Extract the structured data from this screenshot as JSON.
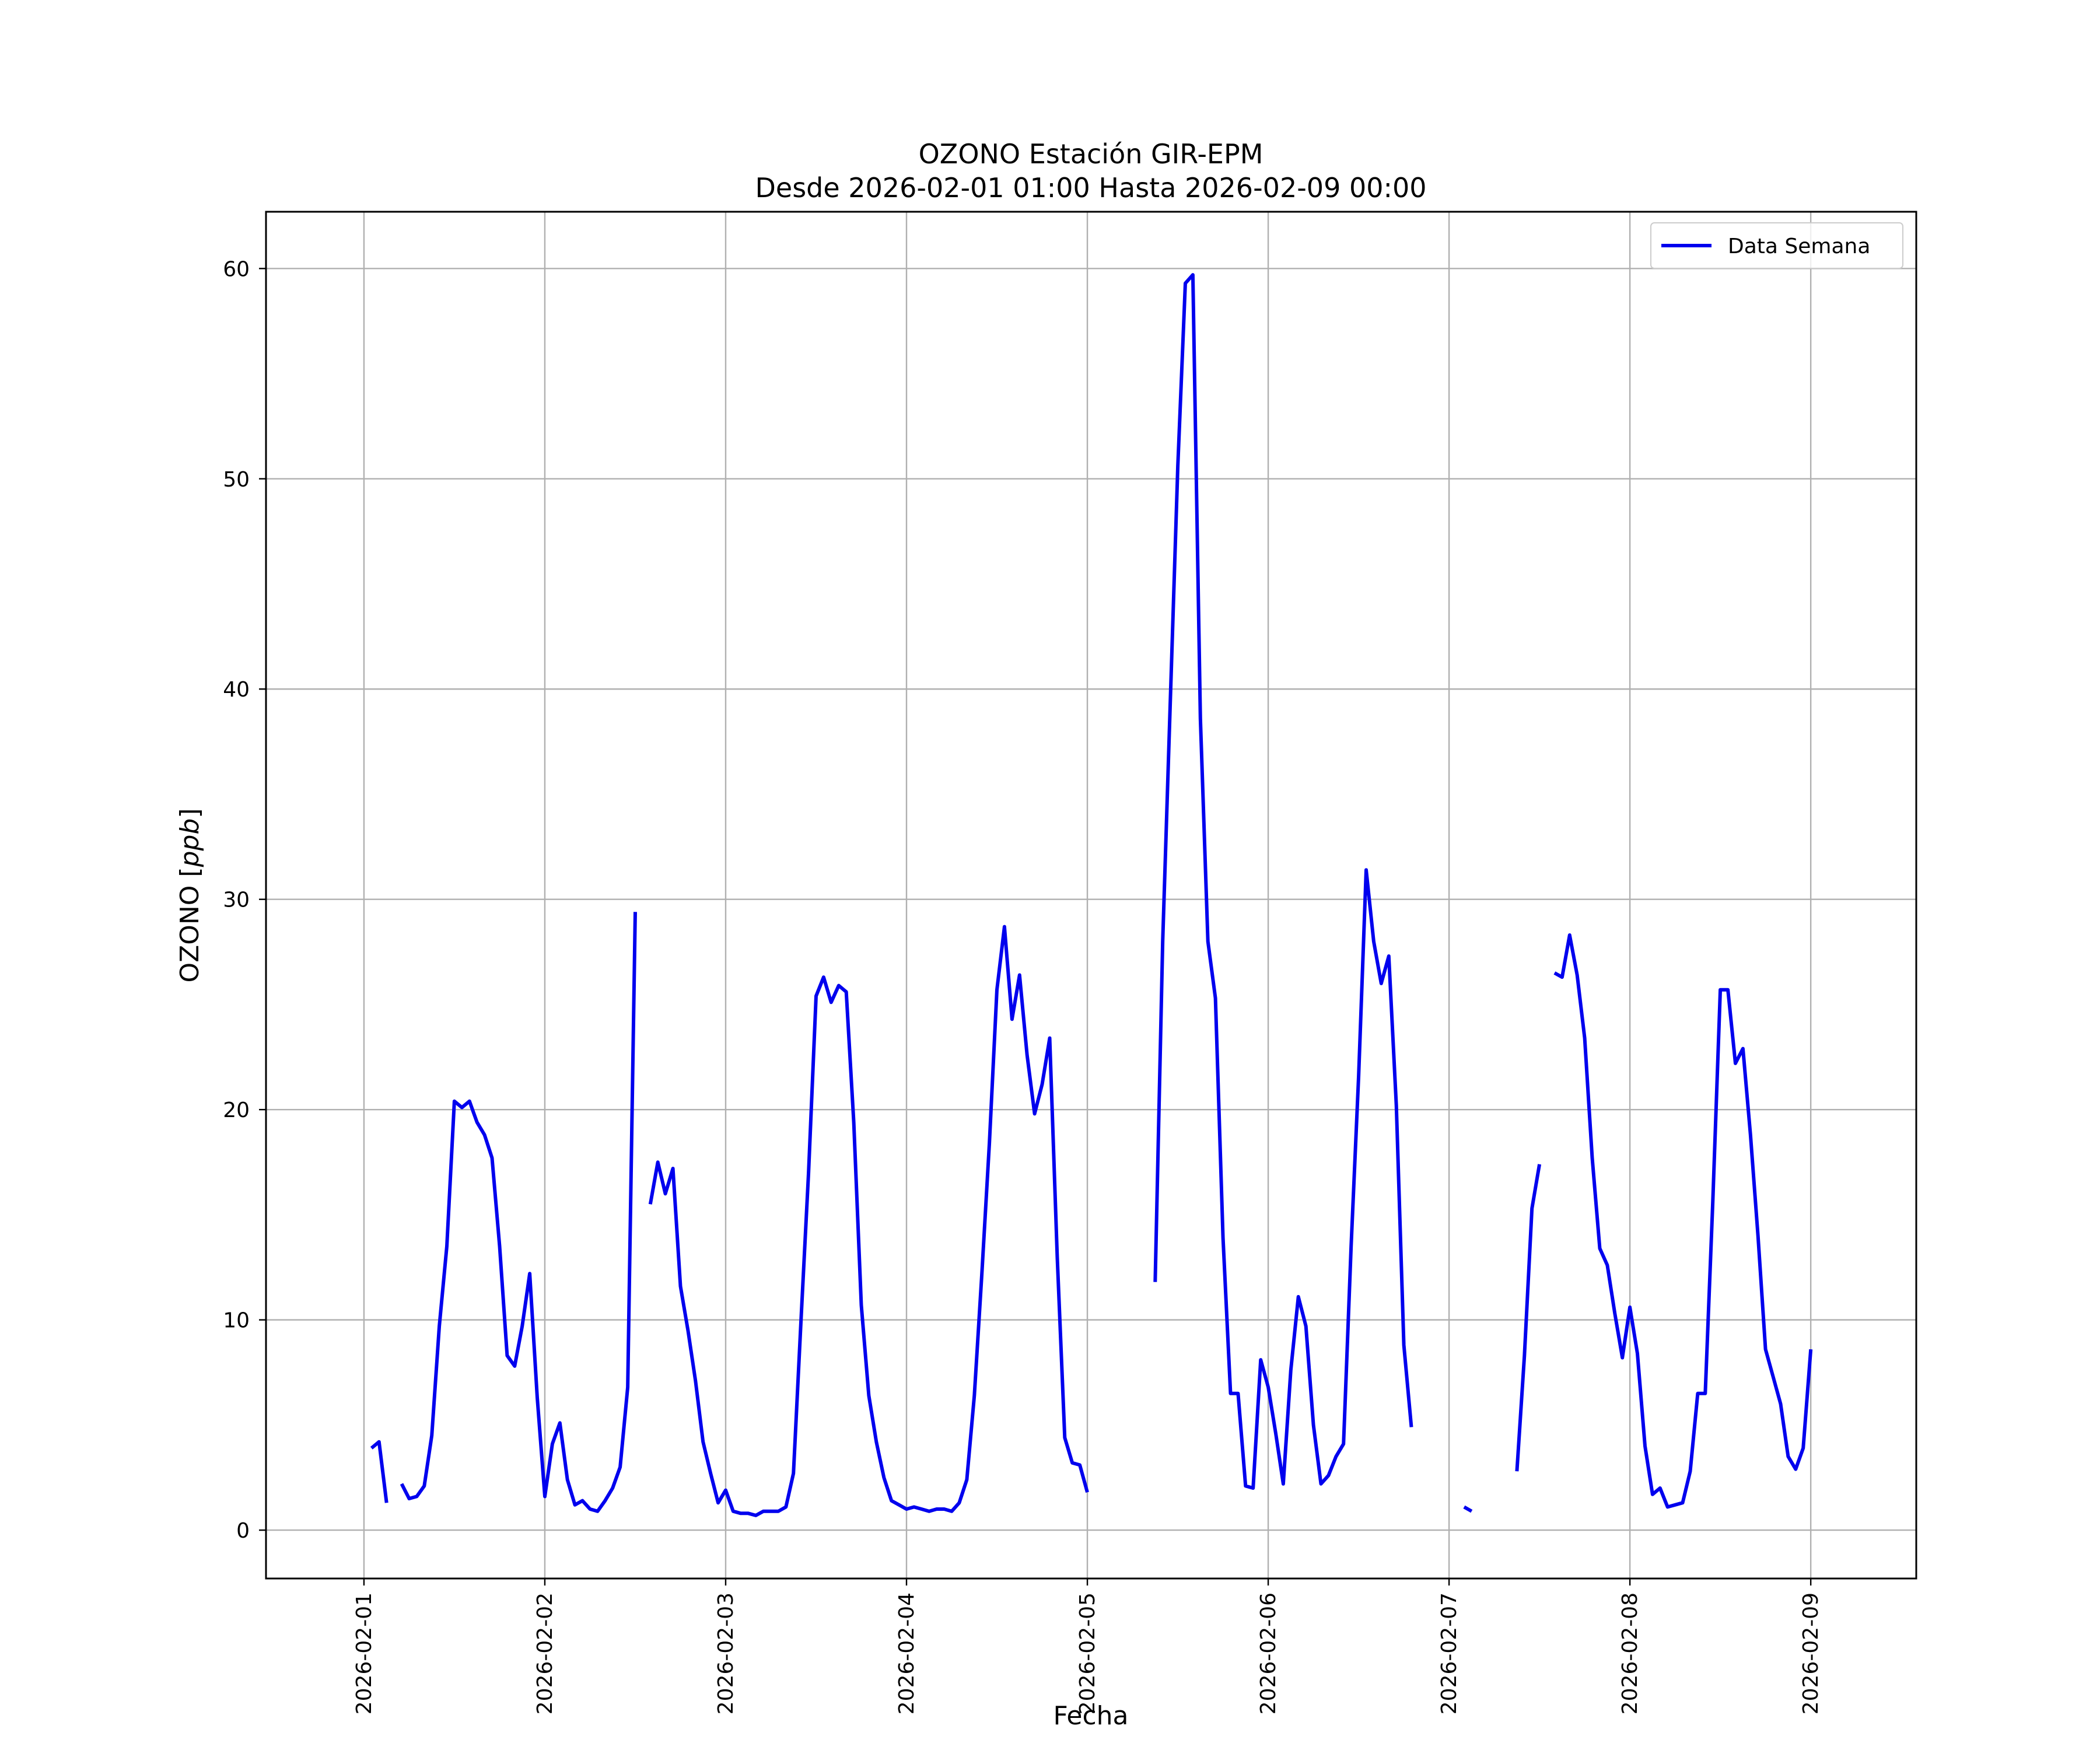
{
  "chart_data": {
    "type": "line",
    "title": "OZONO Estación GIR-EPM",
    "subtitle": "Desde 2026-02-01 01:00 Hasta 2026-02-09 00:00",
    "xlabel": "Fecha",
    "ylabel_main": "OZONO",
    "ylabel_unit": "ppb",
    "x_type": "datetime",
    "xlim": [
      "2026-01-31 11:00",
      "2026-02-09 14:00"
    ],
    "ylim": [
      -2.3,
      62.7
    ],
    "x_ticks": [
      "2026-02-01",
      "2026-02-02",
      "2026-02-03",
      "2026-02-04",
      "2026-02-05",
      "2026-02-06",
      "2026-02-07",
      "2026-02-08",
      "2026-02-09"
    ],
    "y_ticks": [
      0,
      10,
      20,
      30,
      40,
      50,
      60
    ],
    "grid": true,
    "legend_position": "top-right",
    "line_color": "#0000ee",
    "series": [
      {
        "name": "Data Semana",
        "segments": [
          [
            [
              "2026-02-01 01:00",
              3.9
            ],
            [
              "2026-02-01 02:00",
              4.2
            ],
            [
              "2026-02-01 03:00",
              1.3
            ]
          ],
          [
            [
              "2026-02-01 05:00",
              2.2
            ],
            [
              "2026-02-01 06:00",
              1.5
            ],
            [
              "2026-02-01 07:00",
              1.6
            ],
            [
              "2026-02-01 08:00",
              2.1
            ],
            [
              "2026-02-01 09:00",
              4.5
            ],
            [
              "2026-02-01 10:00",
              9.7
            ],
            [
              "2026-02-01 11:00",
              13.5
            ],
            [
              "2026-02-01 12:00",
              20.4
            ],
            [
              "2026-02-01 13:00",
              20.1
            ],
            [
              "2026-02-01 14:00",
              20.4
            ],
            [
              "2026-02-01 15:00",
              19.4
            ],
            [
              "2026-02-01 16:00",
              18.8
            ],
            [
              "2026-02-01 17:00",
              17.7
            ],
            [
              "2026-02-01 18:00",
              13.5
            ],
            [
              "2026-02-01 19:00",
              8.3
            ],
            [
              "2026-02-01 20:00",
              7.8
            ],
            [
              "2026-02-01 21:00",
              9.7
            ],
            [
              "2026-02-01 22:00",
              12.2
            ],
            [
              "2026-02-01 23:00",
              6.3
            ],
            [
              "2026-02-02 00:00",
              1.6
            ],
            [
              "2026-02-02 01:00",
              4.1
            ],
            [
              "2026-02-02 02:00",
              5.1
            ],
            [
              "2026-02-02 03:00",
              2.4
            ],
            [
              "2026-02-02 04:00",
              1.2
            ],
            [
              "2026-02-02 05:00",
              1.4
            ],
            [
              "2026-02-02 06:00",
              1.0
            ],
            [
              "2026-02-02 07:00",
              0.9
            ],
            [
              "2026-02-02 08:00",
              1.4
            ],
            [
              "2026-02-02 09:00",
              2.0
            ],
            [
              "2026-02-02 10:00",
              3.0
            ],
            [
              "2026-02-02 11:00",
              6.8
            ],
            [
              "2026-02-02 12:00",
              29.4
            ]
          ],
          [
            [
              "2026-02-02 14:00",
              15.5
            ],
            [
              "2026-02-02 15:00",
              17.5
            ],
            [
              "2026-02-02 16:00",
              16.0
            ],
            [
              "2026-02-02 17:00",
              17.2
            ],
            [
              "2026-02-02 18:00",
              11.6
            ],
            [
              "2026-02-02 19:00",
              9.5
            ],
            [
              "2026-02-02 20:00",
              7.1
            ],
            [
              "2026-02-02 21:00",
              4.2
            ],
            [
              "2026-02-02 22:00",
              2.7
            ],
            [
              "2026-02-02 23:00",
              1.3
            ],
            [
              "2026-02-03 00:00",
              1.9
            ],
            [
              "2026-02-03 01:00",
              0.9
            ],
            [
              "2026-02-03 02:00",
              0.8
            ],
            [
              "2026-02-03 03:00",
              0.8
            ],
            [
              "2026-02-03 04:00",
              0.7
            ],
            [
              "2026-02-03 05:00",
              0.9
            ],
            [
              "2026-02-03 06:00",
              0.9
            ],
            [
              "2026-02-03 07:00",
              0.9
            ],
            [
              "2026-02-03 08:00",
              1.1
            ],
            [
              "2026-02-03 09:00",
              2.7
            ],
            [
              "2026-02-03 10:00",
              10.0
            ],
            [
              "2026-02-03 11:00",
              17.0
            ],
            [
              "2026-02-03 12:00",
              25.4
            ],
            [
              "2026-02-03 13:00",
              26.3
            ],
            [
              "2026-02-03 14:00",
              25.1
            ],
            [
              "2026-02-03 15:00",
              25.9
            ],
            [
              "2026-02-03 16:00",
              25.6
            ],
            [
              "2026-02-03 17:00",
              19.4
            ],
            [
              "2026-02-03 18:00",
              10.7
            ],
            [
              "2026-02-03 19:00",
              6.4
            ],
            [
              "2026-02-03 20:00",
              4.2
            ],
            [
              "2026-02-03 21:00",
              2.5
            ],
            [
              "2026-02-03 22:00",
              1.4
            ],
            [
              "2026-02-03 23:00",
              1.2
            ],
            [
              "2026-02-04 00:00",
              1.0
            ],
            [
              "2026-02-04 01:00",
              1.1
            ],
            [
              "2026-02-04 02:00",
              1.0
            ],
            [
              "2026-02-04 03:00",
              0.9
            ],
            [
              "2026-02-04 04:00",
              1.0
            ],
            [
              "2026-02-04 05:00",
              1.0
            ],
            [
              "2026-02-04 06:00",
              0.9
            ],
            [
              "2026-02-04 07:00",
              1.3
            ],
            [
              "2026-02-04 08:00",
              2.4
            ],
            [
              "2026-02-04 09:00",
              6.4
            ],
            [
              "2026-02-04 10:00",
              12.2
            ],
            [
              "2026-02-04 11:00",
              18.4
            ],
            [
              "2026-02-04 12:00",
              25.7
            ],
            [
              "2026-02-04 13:00",
              28.7
            ],
            [
              "2026-02-04 14:00",
              24.3
            ],
            [
              "2026-02-04 15:00",
              26.4
            ],
            [
              "2026-02-04 16:00",
              22.6
            ],
            [
              "2026-02-04 17:00",
              19.8
            ],
            [
              "2026-02-04 18:00",
              21.2
            ],
            [
              "2026-02-04 19:00",
              23.4
            ],
            [
              "2026-02-04 20:00",
              13.0
            ],
            [
              "2026-02-04 21:00",
              4.4
            ],
            [
              "2026-02-04 22:00",
              3.2
            ],
            [
              "2026-02-04 23:00",
              3.1
            ],
            [
              "2026-02-05 00:00",
              1.8
            ]
          ],
          [
            [
              "2026-02-05 09:00",
              11.8
            ],
            [
              "2026-02-05 10:00",
              28.0
            ],
            [
              "2026-02-05 11:00",
              39.3
            ],
            [
              "2026-02-05 12:00",
              50.6
            ],
            [
              "2026-02-05 13:00",
              59.3
            ],
            [
              "2026-02-05 14:00",
              59.7
            ],
            [
              "2026-02-05 15:00",
              38.6
            ],
            [
              "2026-02-05 16:00",
              28.0
            ],
            [
              "2026-02-05 17:00",
              25.3
            ],
            [
              "2026-02-05 18:00",
              13.9
            ],
            [
              "2026-02-05 19:00",
              6.5
            ],
            [
              "2026-02-05 20:00",
              6.5
            ],
            [
              "2026-02-05 21:00",
              2.1
            ],
            [
              "2026-02-05 22:00",
              2.0
            ],
            [
              "2026-02-05 23:00",
              8.1
            ],
            [
              "2026-02-06 00:00",
              6.8
            ],
            [
              "2026-02-06 01:00",
              4.6
            ],
            [
              "2026-02-06 02:00",
              2.2
            ],
            [
              "2026-02-06 03:00",
              7.6
            ],
            [
              "2026-02-06 04:00",
              11.1
            ],
            [
              "2026-02-06 05:00",
              9.7
            ],
            [
              "2026-02-06 06:00",
              5.0
            ],
            [
              "2026-02-06 07:00",
              2.2
            ],
            [
              "2026-02-06 08:00",
              2.6
            ],
            [
              "2026-02-06 09:00",
              3.5
            ],
            [
              "2026-02-06 10:00",
              4.1
            ],
            [
              "2026-02-06 11:00",
              13.5
            ],
            [
              "2026-02-06 12:00",
              21.6
            ],
            [
              "2026-02-06 13:00",
              31.4
            ],
            [
              "2026-02-06 14:00",
              28.0
            ],
            [
              "2026-02-06 15:00",
              26.0
            ],
            [
              "2026-02-06 16:00",
              27.3
            ],
            [
              "2026-02-06 17:00",
              20.2
            ],
            [
              "2026-02-06 18:00",
              8.8
            ],
            [
              "2026-02-06 19:00",
              4.9
            ]
          ],
          [
            [
              "2026-02-07 02:00",
              1.1
            ],
            [
              "2026-02-07 03:00",
              0.9
            ]
          ],
          [
            [
              "2026-02-07 09:00",
              2.8
            ],
            [
              "2026-02-07 10:00",
              8.3
            ],
            [
              "2026-02-07 11:00",
              15.3
            ],
            [
              "2026-02-07 12:00",
              17.4
            ]
          ],
          [
            [
              "2026-02-07 14:00",
              26.5
            ],
            [
              "2026-02-07 15:00",
              26.3
            ],
            [
              "2026-02-07 16:00",
              28.3
            ],
            [
              "2026-02-07 17:00",
              26.4
            ],
            [
              "2026-02-07 18:00",
              23.4
            ],
            [
              "2026-02-07 19:00",
              17.7
            ],
            [
              "2026-02-07 20:00",
              13.4
            ],
            [
              "2026-02-07 21:00",
              12.6
            ],
            [
              "2026-02-07 22:00",
              10.3
            ],
            [
              "2026-02-07 23:00",
              8.2
            ],
            [
              "2026-02-08 00:00",
              10.6
            ],
            [
              "2026-02-08 01:00",
              8.4
            ],
            [
              "2026-02-08 02:00",
              4.0
            ],
            [
              "2026-02-08 03:00",
              1.7
            ],
            [
              "2026-02-08 04:00",
              2.0
            ],
            [
              "2026-02-08 05:00",
              1.1
            ],
            [
              "2026-02-08 06:00",
              1.2
            ],
            [
              "2026-02-08 07:00",
              1.3
            ],
            [
              "2026-02-08 08:00",
              2.8
            ],
            [
              "2026-02-08 09:00",
              6.5
            ],
            [
              "2026-02-08 10:00",
              6.5
            ],
            [
              "2026-02-08 11:00",
              15.6
            ],
            [
              "2026-02-08 12:00",
              25.7
            ],
            [
              "2026-02-08 13:00",
              25.7
            ],
            [
              "2026-02-08 14:00",
              22.2
            ],
            [
              "2026-02-08 15:00",
              22.9
            ],
            [
              "2026-02-08 16:00",
              18.8
            ],
            [
              "2026-02-08 17:00",
              14.0
            ],
            [
              "2026-02-08 18:00",
              8.6
            ],
            [
              "2026-02-08 19:00",
              7.3
            ],
            [
              "2026-02-08 20:00",
              6.0
            ],
            [
              "2026-02-08 21:00",
              3.5
            ],
            [
              "2026-02-08 22:00",
              2.9
            ],
            [
              "2026-02-08 23:00",
              3.9
            ],
            [
              "2026-02-09 00:00",
              8.6
            ]
          ]
        ]
      }
    ]
  }
}
